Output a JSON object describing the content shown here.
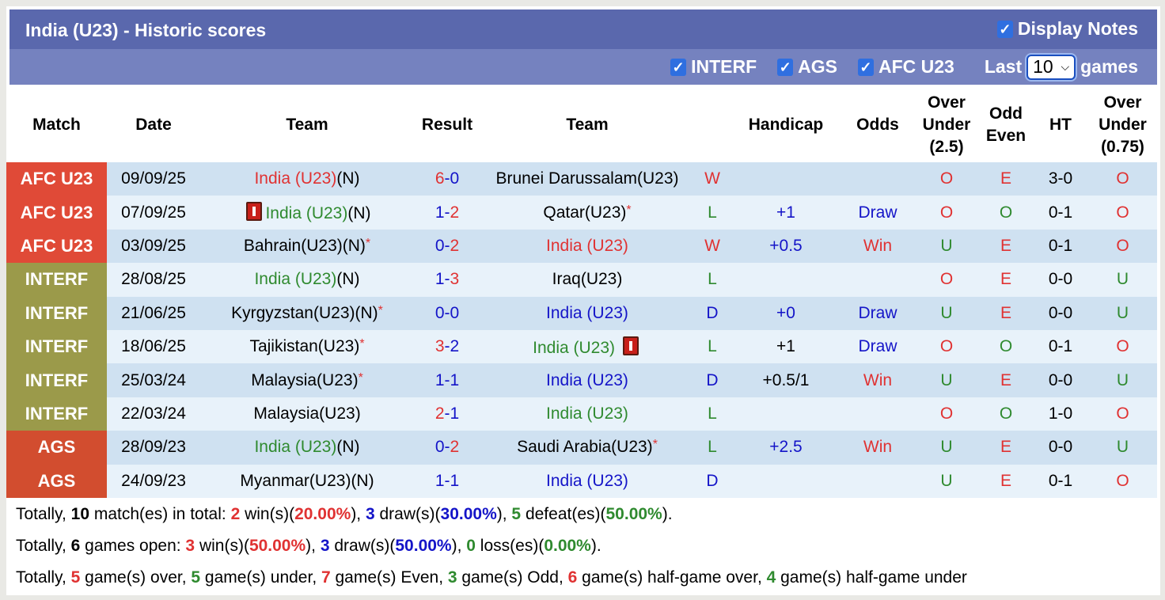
{
  "header": {
    "title": "India (U23) - Historic scores",
    "display_notes": "Display Notes"
  },
  "filters": {
    "items": [
      "INTERF",
      "AGS",
      "AFC U23"
    ],
    "last_label": "Last",
    "last_value": "10",
    "games_label": "games"
  },
  "columns": [
    "Match",
    "Date",
    "Team",
    "Result",
    "Team",
    "",
    "Handicap",
    "Odds",
    "Over Under (2.5)",
    "Odd Even",
    "HT",
    "Over Under (0.75)"
  ],
  "badge_colors": {
    "AFC U23": "#e04a37",
    "INTERF": "#9b9a4a",
    "AGS": "#d24d2f"
  },
  "rows": [
    {
      "match": "AFC U23",
      "date": "09/09/25",
      "home": {
        "name": "India (U23)",
        "color": "red",
        "suffix": "(N)",
        "star": false,
        "card": false
      },
      "score": [
        6,
        0
      ],
      "away": {
        "name": "Brunei Darussalam(U23)",
        "color": "black",
        "suffix": "",
        "star": false,
        "card": false
      },
      "wl": "W",
      "hcp": "",
      "hcp_color": "blue",
      "odds": "",
      "ou": "O",
      "oe": "E",
      "ht": "3-0",
      "ou2": "O"
    },
    {
      "match": "AFC U23",
      "date": "07/09/25",
      "home": {
        "name": "India (U23)",
        "color": "green",
        "suffix": "(N)",
        "star": false,
        "card": true,
        "card_pos": "before"
      },
      "score": [
        1,
        2
      ],
      "away": {
        "name": "Qatar(U23)",
        "color": "black",
        "suffix": "",
        "star": true,
        "card": false
      },
      "wl": "L",
      "hcp": "+1",
      "hcp_color": "blue",
      "odds": "Draw",
      "ou": "O",
      "oe": "O",
      "ht": "0-1",
      "ou2": "O"
    },
    {
      "match": "AFC U23",
      "date": "03/09/25",
      "home": {
        "name": "Bahrain(U23)",
        "color": "black",
        "suffix": "(N)",
        "star": true,
        "card": false
      },
      "score": [
        0,
        2
      ],
      "away": {
        "name": "India (U23)",
        "color": "red",
        "suffix": "",
        "star": false,
        "card": false
      },
      "wl": "W",
      "hcp": "+0.5",
      "hcp_color": "blue",
      "odds": "Win",
      "ou": "U",
      "oe": "E",
      "ht": "0-1",
      "ou2": "O"
    },
    {
      "match": "INTERF",
      "date": "28/08/25",
      "home": {
        "name": "India (U23)",
        "color": "green",
        "suffix": "(N)",
        "star": false,
        "card": false
      },
      "score": [
        1,
        3
      ],
      "away": {
        "name": "Iraq(U23)",
        "color": "black",
        "suffix": "",
        "star": false,
        "card": false
      },
      "wl": "L",
      "hcp": "",
      "hcp_color": "blue",
      "odds": "",
      "ou": "O",
      "oe": "E",
      "ht": "0-0",
      "ou2": "U"
    },
    {
      "match": "INTERF",
      "date": "21/06/25",
      "home": {
        "name": "Kyrgyzstan(U23)",
        "color": "black",
        "suffix": "(N)",
        "star": true,
        "card": false
      },
      "score": [
        0,
        0
      ],
      "away": {
        "name": "India (U23)",
        "color": "blue",
        "suffix": "",
        "star": false,
        "card": false
      },
      "wl": "D",
      "hcp": "+0",
      "hcp_color": "blue",
      "odds": "Draw",
      "ou": "U",
      "oe": "E",
      "ht": "0-0",
      "ou2": "U"
    },
    {
      "match": "INTERF",
      "date": "18/06/25",
      "home": {
        "name": "Tajikistan(U23)",
        "color": "black",
        "suffix": "",
        "star": true,
        "card": false
      },
      "score": [
        3,
        2
      ],
      "away": {
        "name": "India (U23)",
        "color": "green",
        "suffix": "",
        "star": false,
        "card": true,
        "card_pos": "after"
      },
      "wl": "L",
      "hcp": "+1",
      "hcp_color": "black",
      "odds": "Draw",
      "ou": "O",
      "oe": "O",
      "ht": "0-1",
      "ou2": "O"
    },
    {
      "match": "INTERF",
      "date": "25/03/24",
      "home": {
        "name": "Malaysia(U23)",
        "color": "black",
        "suffix": "",
        "star": true,
        "card": false
      },
      "score": [
        1,
        1
      ],
      "away": {
        "name": "India (U23)",
        "color": "blue",
        "suffix": "",
        "star": false,
        "card": false
      },
      "wl": "D",
      "hcp": "+0.5/1",
      "hcp_color": "black",
      "odds": "Win",
      "ou": "U",
      "oe": "E",
      "ht": "0-0",
      "ou2": "U"
    },
    {
      "match": "INTERF",
      "date": "22/03/24",
      "home": {
        "name": "Malaysia(U23)",
        "color": "black",
        "suffix": "",
        "star": false,
        "card": false
      },
      "score": [
        2,
        1
      ],
      "away": {
        "name": "India (U23)",
        "color": "green",
        "suffix": "",
        "star": false,
        "card": false
      },
      "wl": "L",
      "hcp": "",
      "hcp_color": "blue",
      "odds": "",
      "ou": "O",
      "oe": "O",
      "ht": "1-0",
      "ou2": "O"
    },
    {
      "match": "AGS",
      "date": "28/09/23",
      "home": {
        "name": "India (U23)",
        "color": "green",
        "suffix": "(N)",
        "star": false,
        "card": false
      },
      "score": [
        0,
        2
      ],
      "away": {
        "name": "Saudi Arabia(U23)",
        "color": "black",
        "suffix": "",
        "star": true,
        "card": false
      },
      "wl": "L",
      "hcp": "+2.5",
      "hcp_color": "blue",
      "odds": "Win",
      "ou": "U",
      "oe": "E",
      "ht": "0-0",
      "ou2": "U"
    },
    {
      "match": "AGS",
      "date": "24/09/23",
      "home": {
        "name": "Myanmar(U23)",
        "color": "black",
        "suffix": "(N)",
        "star": false,
        "card": false
      },
      "score": [
        1,
        1
      ],
      "away": {
        "name": "India (U23)",
        "color": "blue",
        "suffix": "",
        "star": false,
        "card": false
      },
      "wl": "D",
      "hcp": "",
      "hcp_color": "blue",
      "odds": "",
      "ou": "U",
      "oe": "E",
      "ht": "0-1",
      "ou2": "O"
    }
  ],
  "summary": [
    [
      {
        "t": "Totally, "
      },
      {
        "t": "10",
        "b": true
      },
      {
        "t": " match(es) in total: "
      },
      {
        "t": "2",
        "c": "red",
        "b": true
      },
      {
        "t": " win(s)("
      },
      {
        "t": "20.00%",
        "c": "red",
        "b": true
      },
      {
        "t": "), "
      },
      {
        "t": "3",
        "c": "blue",
        "b": true
      },
      {
        "t": " draw(s)("
      },
      {
        "t": "30.00%",
        "c": "blue",
        "b": true
      },
      {
        "t": "), "
      },
      {
        "t": "5",
        "c": "green",
        "b": true
      },
      {
        "t": " defeat(es)("
      },
      {
        "t": "50.00%",
        "c": "green",
        "b": true
      },
      {
        "t": ")."
      }
    ],
    [
      {
        "t": "Totally, "
      },
      {
        "t": "6",
        "b": true
      },
      {
        "t": " games open: "
      },
      {
        "t": "3",
        "c": "red",
        "b": true
      },
      {
        "t": " win(s)("
      },
      {
        "t": "50.00%",
        "c": "red",
        "b": true
      },
      {
        "t": "), "
      },
      {
        "t": "3",
        "c": "blue",
        "b": true
      },
      {
        "t": " draw(s)("
      },
      {
        "t": "50.00%",
        "c": "blue",
        "b": true
      },
      {
        "t": "), "
      },
      {
        "t": "0",
        "c": "green",
        "b": true
      },
      {
        "t": " loss(es)("
      },
      {
        "t": "0.00%",
        "c": "green",
        "b": true
      },
      {
        "t": ")."
      }
    ],
    [
      {
        "t": "Totally, "
      },
      {
        "t": "5",
        "c": "red",
        "b": true
      },
      {
        "t": " game(s) over, "
      },
      {
        "t": "5",
        "c": "green",
        "b": true
      },
      {
        "t": " game(s) under, "
      },
      {
        "t": "7",
        "c": "red",
        "b": true
      },
      {
        "t": " game(s) Even, "
      },
      {
        "t": "3",
        "c": "green",
        "b": true
      },
      {
        "t": " game(s) Odd, "
      },
      {
        "t": "6",
        "c": "red",
        "b": true
      },
      {
        "t": " game(s) half-game over, "
      },
      {
        "t": "4",
        "c": "green",
        "b": true
      },
      {
        "t": " game(s) half-game under"
      }
    ]
  ]
}
